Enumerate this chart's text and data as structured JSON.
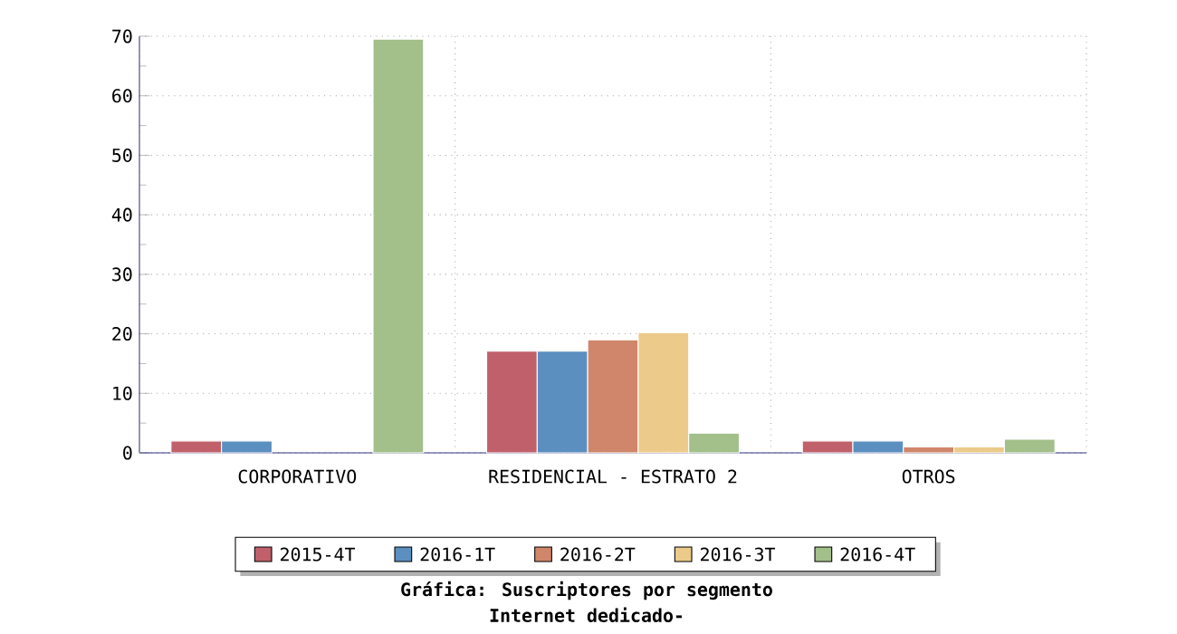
{
  "chart_data": {
    "type": "bar",
    "title": "Gráfica: Suscriptores por segmento",
    "subtitle": "Internet dedicado-",
    "categories": [
      "CORPORATIVO",
      "RESIDENCIAL - ESTRATO 2",
      "OTROS"
    ],
    "series": [
      {
        "name": "2015-4T",
        "color": "#c0606a",
        "values": [
          2,
          17.1,
          2
        ]
      },
      {
        "name": "2016-1T",
        "color": "#5b8fc0",
        "values": [
          2,
          17.1,
          2
        ]
      },
      {
        "name": "2016-2T",
        "color": "#d0866a",
        "values": [
          null,
          19,
          1
        ]
      },
      {
        "name": "2016-3T",
        "color": "#ecca8a",
        "values": [
          null,
          20.2,
          1
        ]
      },
      {
        "name": "2016-4T",
        "color": "#a3bf8a",
        "values": [
          69.5,
          3.3,
          2.3
        ]
      }
    ],
    "ylim": [
      0,
      70
    ],
    "yticks": [
      0,
      10,
      20,
      30,
      40,
      50,
      60,
      70
    ],
    "grid": true,
    "legend": "bottom"
  }
}
